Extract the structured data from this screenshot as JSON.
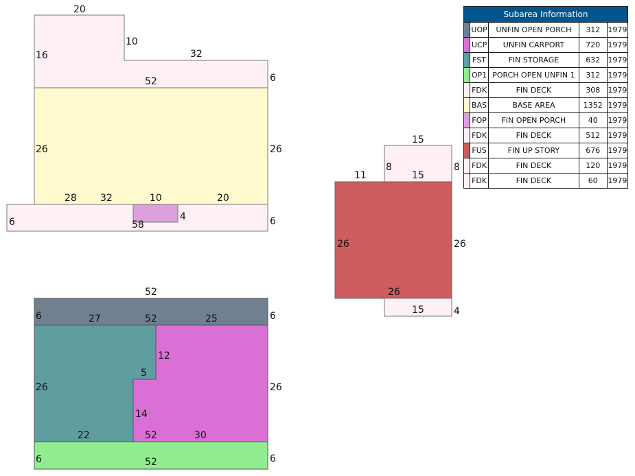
{
  "table": {
    "title": "Subarea Information",
    "rows": [
      {
        "color": "#708090",
        "code": "UOP",
        "description": "UNFIN OPEN PORCH",
        "area": "312",
        "year": "1979"
      },
      {
        "color": "#da70d6",
        "code": "UCP",
        "description": "UNFIN CARPORT",
        "area": "720",
        "year": "1979"
      },
      {
        "color": "#5f9ea0",
        "code": "FST",
        "description": "FIN STORAGE",
        "area": "632",
        "year": "1979"
      },
      {
        "color": "#90ee90",
        "code": "OP1",
        "description": "PORCH OPEN UNFIN 1",
        "area": "312",
        "year": "1979"
      },
      {
        "color": "#fff0f5",
        "code": "FDK",
        "description": "FIN DECK",
        "area": "308",
        "year": "1979"
      },
      {
        "color": "#fffacd",
        "code": "BAS",
        "description": "BASE AREA",
        "area": "1352",
        "year": "1979"
      },
      {
        "color": "#dda0dd",
        "code": "FOP",
        "description": "FIN OPEN PORCH",
        "area": "40",
        "year": "1979"
      },
      {
        "color": "#fff0f5",
        "code": "FDK",
        "description": "FIN DECK",
        "area": "512",
        "year": "1979"
      },
      {
        "color": "#cd5c5c",
        "code": "FUS",
        "description": "FIN UP STORY",
        "area": "676",
        "year": "1979"
      },
      {
        "color": "#fff0f5",
        "code": "FDK",
        "description": "FIN DECK",
        "area": "120",
        "year": "1979"
      },
      {
        "color": "#fff0f5",
        "code": "FDK",
        "description": "FIN DECK",
        "area": "60",
        "year": "1979"
      }
    ]
  },
  "sketch_a": {
    "top_deck": {
      "dims": [
        "20",
        "10",
        "16",
        "32",
        "52",
        "6"
      ]
    },
    "base": {
      "dims": [
        "26",
        "26"
      ]
    },
    "bottom_deck": {
      "dims": [
        "28",
        "32",
        "10",
        "20",
        "6",
        "6",
        "58"
      ]
    },
    "porch": {
      "dims": [
        "4"
      ]
    }
  },
  "sketch_b": {
    "uop": {
      "dims": [
        "52",
        "6",
        "6"
      ]
    },
    "fst": {
      "dims": [
        "27",
        "26",
        "5",
        "22",
        "14"
      ]
    },
    "ucp": {
      "dims": [
        "52",
        "25",
        "12",
        "26",
        "52",
        "30"
      ]
    },
    "op1": {
      "dims": [
        "6",
        "52",
        "6"
      ]
    }
  },
  "sketch_c": {
    "upper_deck": {
      "dims": [
        "15",
        "8",
        "8",
        "15"
      ]
    },
    "fus": {
      "dims": [
        "11",
        "26",
        "26",
        "26"
      ]
    },
    "lower_deck": {
      "dims": [
        "15",
        "4"
      ]
    }
  }
}
